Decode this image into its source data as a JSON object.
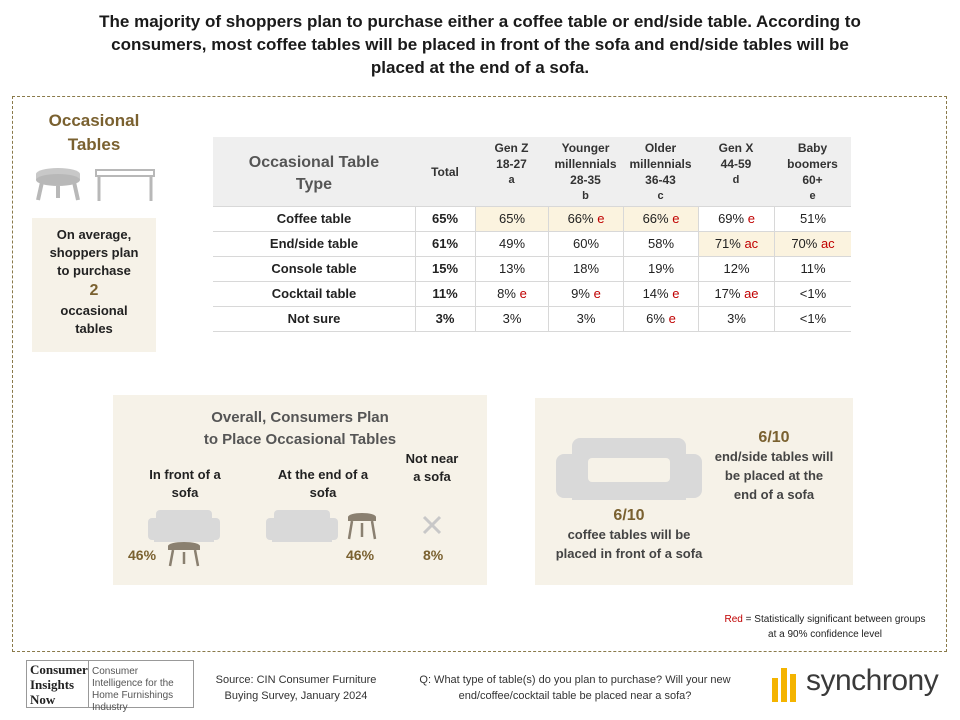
{
  "title": "The majority of shoppers plan to purchase either a coffee table or end/side table. According to consumers, most coffee tables will be placed in front of the sofa and end/side tables will be placed at the end of a sofa.",
  "left_panel": {
    "heading": "Occasional Tables",
    "avg_text1": "On average, shoppers plan to purchase",
    "avg_number": "2",
    "avg_text2": "occasional tables"
  },
  "chart_data": {
    "type": "table",
    "columns": [
      {
        "key": "type",
        "label": "Occasional Table Type"
      },
      {
        "key": "total",
        "label": "Total"
      },
      {
        "key": "a",
        "label": "Gen Z",
        "range": "18-27",
        "letter": "a"
      },
      {
        "key": "b",
        "label": "Younger millennials",
        "range": "28-35",
        "letter": "b"
      },
      {
        "key": "c",
        "label": "Older millennials",
        "range": "36-43",
        "letter": "c"
      },
      {
        "key": "d",
        "label": "Gen X",
        "range": "44-59",
        "letter": "d"
      },
      {
        "key": "e",
        "label": "Baby boomers",
        "range": "60+",
        "letter": "e"
      }
    ],
    "rows": [
      {
        "type": "Coffee table",
        "total": "65%",
        "cells": [
          [
            "65%",
            ""
          ],
          [
            "66%",
            "e"
          ],
          [
            "66%",
            "e"
          ],
          [
            "69%",
            "e"
          ],
          [
            "51%",
            ""
          ]
        ],
        "highlight": [
          0,
          1,
          2
        ]
      },
      {
        "type": "End/side table",
        "total": "61%",
        "cells": [
          [
            "49%",
            ""
          ],
          [
            "60%",
            ""
          ],
          [
            "58%",
            ""
          ],
          [
            "71%",
            "ac"
          ],
          [
            "70%",
            "ac"
          ]
        ],
        "highlight": [
          3,
          4
        ]
      },
      {
        "type": "Console table",
        "total": "15%",
        "cells": [
          [
            "13%",
            ""
          ],
          [
            "18%",
            ""
          ],
          [
            "19%",
            ""
          ],
          [
            "12%",
            ""
          ],
          [
            "11%",
            ""
          ]
        ],
        "highlight": []
      },
      {
        "type": "Cocktail table",
        "total": "11%",
        "cells": [
          [
            "8%",
            "e"
          ],
          [
            "9%",
            "e"
          ],
          [
            "14%",
            "e"
          ],
          [
            "17%",
            "ae"
          ],
          [
            "<1%",
            ""
          ]
        ],
        "highlight": []
      },
      {
        "type": "Not sure",
        "total": "3%",
        "cells": [
          [
            "3%",
            ""
          ],
          [
            "3%",
            ""
          ],
          [
            "6%",
            "e"
          ],
          [
            "3%",
            ""
          ],
          [
            "<1%",
            ""
          ]
        ],
        "highlight": []
      }
    ]
  },
  "overall": {
    "title_line1": "Overall, Consumers Plan",
    "title_line2": "to Place Occasional Tables",
    "in_front_label": "In front of a sofa",
    "in_front_pct": "46%",
    "end_label": "At the end of a sofa",
    "end_pct": "46%",
    "not_near_label": "Not near a sofa",
    "not_near_pct": "8%"
  },
  "right_box": {
    "end_frac": "6/10",
    "end_text": "end/side tables will be placed at the end of a sofa",
    "front_frac": "6/10",
    "front_text": "coffee tables will be placed in front of a sofa"
  },
  "note": {
    "red_word": "Red",
    "text": " = Statistically significant between groups at a 90% confidence level"
  },
  "footer": {
    "logo_left": "Consumer Insights Now",
    "logo_right": "Consumer Intelligence for the Home Furnishings Industry",
    "source": "Source: CIN Consumer Furniture Buying Survey, January 2024",
    "question": "Q: What type of table(s) do you plan to purchase? Will your new end/coffee/cocktail table be placed near a sofa?",
    "brand": "synchrony"
  },
  "colors": {
    "accent": "#7a6130",
    "significant": "#c00000",
    "highlight": "#fbf3df",
    "panel": "#f6f2e8"
  }
}
